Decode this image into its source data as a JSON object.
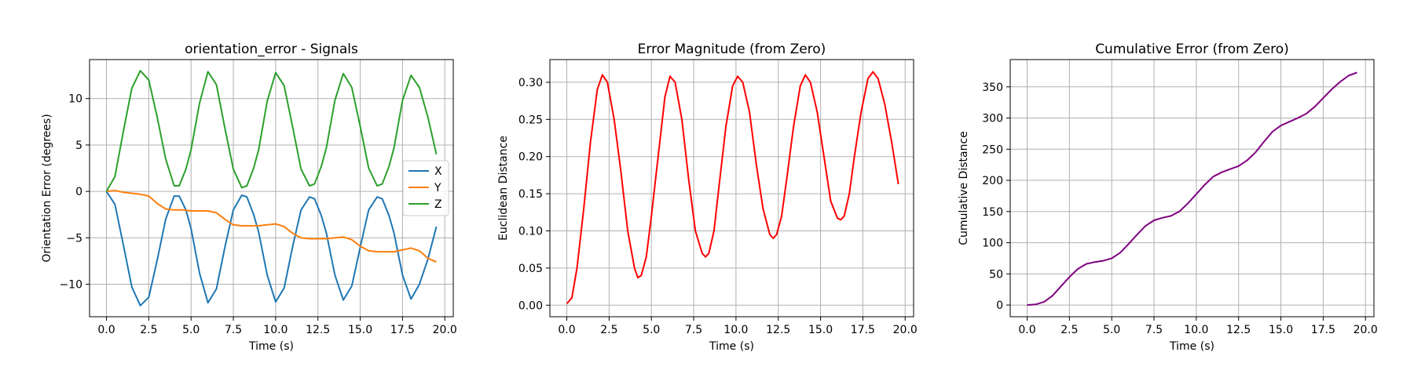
{
  "chart_data": [
    {
      "type": "line",
      "title": "orientation_error - Signals",
      "xlabel": "Time (s)",
      "ylabel": "Orientation Error (degrees)",
      "xlim": [
        -1.0,
        20.5
      ],
      "ylim": [
        -13.5,
        14.2
      ],
      "xticks": [
        0.0,
        2.5,
        5.0,
        7.5,
        10.0,
        12.5,
        15.0,
        17.5,
        20.0
      ],
      "xtick_labels": [
        "0.0",
        "2.5",
        "5.0",
        "7.5",
        "10.0",
        "12.5",
        "15.0",
        "17.5",
        "20.0"
      ],
      "yticks": [
        -10,
        -5,
        0,
        5,
        10
      ],
      "ytick_labels": [
        "−10",
        "−5",
        "0",
        "5",
        "10"
      ],
      "grid": true,
      "legend": "center-right",
      "series": [
        {
          "name": "X",
          "color": "#1f77b4",
          "x": [
            0.0,
            0.5,
            1.0,
            1.5,
            2.0,
            2.5,
            3.0,
            3.5,
            4.0,
            4.3,
            4.7,
            5.0,
            5.5,
            6.0,
            6.5,
            7.0,
            7.5,
            8.0,
            8.3,
            8.7,
            9.0,
            9.5,
            10.0,
            10.5,
            11.0,
            11.5,
            12.0,
            12.3,
            12.7,
            13.0,
            13.5,
            14.0,
            14.5,
            15.0,
            15.5,
            16.0,
            16.3,
            16.7,
            17.0,
            17.5,
            18.0,
            18.5,
            19.0,
            19.5
          ],
          "y": [
            0.0,
            -1.4,
            -5.8,
            -10.3,
            -12.3,
            -11.4,
            -7.4,
            -3.0,
            -0.5,
            -0.5,
            -2.0,
            -4.0,
            -8.8,
            -12.0,
            -10.5,
            -6.0,
            -2.0,
            -0.4,
            -0.6,
            -2.5,
            -4.4,
            -9.0,
            -11.9,
            -10.4,
            -6.0,
            -2.0,
            -0.6,
            -0.8,
            -2.6,
            -4.5,
            -9.0,
            -11.7,
            -10.2,
            -6.0,
            -2.0,
            -0.6,
            -0.8,
            -2.6,
            -4.5,
            -9.0,
            -11.6,
            -10.0,
            -7.3,
            -3.8
          ]
        },
        {
          "name": "Y",
          "color": "#ff7f0e",
          "x": [
            0.0,
            0.5,
            1.0,
            1.5,
            2.0,
            2.5,
            3.0,
            3.5,
            4.0,
            4.5,
            5.0,
            5.5,
            6.0,
            6.5,
            7.0,
            7.5,
            8.0,
            8.5,
            9.0,
            9.5,
            10.0,
            10.5,
            11.0,
            11.5,
            12.0,
            12.5,
            13.0,
            13.5,
            14.0,
            14.5,
            15.0,
            15.5,
            16.0,
            16.5,
            17.0,
            17.5,
            18.0,
            18.5,
            19.0,
            19.5
          ],
          "y": [
            0.0,
            0.1,
            -0.1,
            -0.2,
            -0.3,
            -0.5,
            -1.3,
            -1.9,
            -2.0,
            -2.0,
            -2.1,
            -2.1,
            -2.1,
            -2.3,
            -3.0,
            -3.6,
            -3.7,
            -3.7,
            -3.7,
            -3.6,
            -3.5,
            -3.8,
            -4.5,
            -5.0,
            -5.1,
            -5.1,
            -5.1,
            -5.0,
            -4.9,
            -5.2,
            -5.9,
            -6.4,
            -6.5,
            -6.5,
            -6.5,
            -6.3,
            -6.1,
            -6.4,
            -7.2,
            -7.6
          ]
        },
        {
          "name": "Z",
          "color": "#2ca02c",
          "x": [
            0.0,
            0.5,
            1.0,
            1.5,
            2.0,
            2.5,
            3.0,
            3.5,
            4.0,
            4.3,
            4.7,
            5.0,
            5.5,
            6.0,
            6.5,
            7.0,
            7.5,
            8.0,
            8.3,
            8.7,
            9.0,
            9.5,
            10.0,
            10.5,
            11.0,
            11.5,
            12.0,
            12.3,
            12.7,
            13.0,
            13.5,
            14.0,
            14.5,
            15.0,
            15.5,
            16.0,
            16.3,
            16.7,
            17.0,
            17.5,
            18.0,
            18.5,
            19.0,
            19.5
          ],
          "y": [
            0.0,
            1.6,
            6.5,
            11.1,
            13.0,
            12.0,
            8.0,
            3.5,
            0.6,
            0.6,
            2.4,
            4.5,
            9.5,
            12.9,
            11.5,
            6.8,
            2.4,
            0.4,
            0.6,
            2.5,
            4.5,
            9.7,
            12.8,
            11.4,
            7.0,
            2.4,
            0.6,
            0.8,
            2.7,
            4.7,
            9.8,
            12.7,
            11.2,
            7.0,
            2.5,
            0.6,
            0.8,
            2.7,
            4.7,
            9.8,
            12.5,
            11.2,
            8.0,
            4.0
          ]
        }
      ]
    },
    {
      "type": "line",
      "title": "Error Magnitude (from Zero)",
      "xlabel": "Time (s)",
      "ylabel": "Euclidean Distance",
      "xlim": [
        -1.0,
        20.5
      ],
      "ylim": [
        -0.0155,
        0.3305
      ],
      "xticks": [
        0.0,
        2.5,
        5.0,
        7.5,
        10.0,
        12.5,
        15.0,
        17.5,
        20.0
      ],
      "xtick_labels": [
        "0.0",
        "2.5",
        "5.0",
        "7.5",
        "10.0",
        "12.5",
        "15.0",
        "17.5",
        "20.0"
      ],
      "yticks": [
        0.0,
        0.05,
        0.1,
        0.15,
        0.2,
        0.25,
        0.3
      ],
      "ytick_labels": [
        "0.00",
        "0.05",
        "0.10",
        "0.15",
        "0.20",
        "0.25",
        "0.30"
      ],
      "grid": true,
      "series": [
        {
          "color": "#ff0000",
          "x": [
            0.0,
            0.3,
            0.6,
            1.0,
            1.4,
            1.8,
            2.1,
            2.4,
            2.8,
            3.2,
            3.6,
            4.0,
            4.2,
            4.4,
            4.7,
            5.0,
            5.4,
            5.8,
            6.1,
            6.4,
            6.8,
            7.2,
            7.6,
            8.0,
            8.2,
            8.4,
            8.7,
            9.0,
            9.4,
            9.8,
            10.1,
            10.4,
            10.8,
            11.2,
            11.6,
            12.0,
            12.2,
            12.4,
            12.7,
            13.0,
            13.4,
            13.8,
            14.1,
            14.4,
            14.8,
            15.2,
            15.6,
            16.0,
            16.2,
            16.4,
            16.7,
            17.0,
            17.4,
            17.8,
            18.1,
            18.4,
            18.8,
            19.2,
            19.6
          ],
          "y": [
            0.002,
            0.01,
            0.05,
            0.13,
            0.22,
            0.29,
            0.31,
            0.3,
            0.25,
            0.18,
            0.1,
            0.05,
            0.037,
            0.04,
            0.065,
            0.12,
            0.2,
            0.28,
            0.308,
            0.3,
            0.25,
            0.17,
            0.1,
            0.07,
            0.065,
            0.07,
            0.1,
            0.16,
            0.24,
            0.295,
            0.308,
            0.3,
            0.26,
            0.19,
            0.13,
            0.095,
            0.09,
            0.095,
            0.12,
            0.17,
            0.24,
            0.295,
            0.31,
            0.3,
            0.26,
            0.2,
            0.14,
            0.117,
            0.115,
            0.12,
            0.15,
            0.2,
            0.26,
            0.305,
            0.314,
            0.305,
            0.27,
            0.22,
            0.163
          ]
        }
      ]
    },
    {
      "type": "line",
      "title": "Cumulative Error (from Zero)",
      "xlabel": "Time (s)",
      "ylabel": "Cumulative Distance",
      "xlim": [
        -1.0,
        20.5
      ],
      "ylim": [
        -18.75,
        393.75
      ],
      "xticks": [
        0.0,
        2.5,
        5.0,
        7.5,
        10.0,
        12.5,
        15.0,
        17.5,
        20.0
      ],
      "xtick_labels": [
        "0.0",
        "2.5",
        "5.0",
        "7.5",
        "10.0",
        "12.5",
        "15.0",
        "17.5",
        "20.0"
      ],
      "yticks": [
        0,
        50,
        100,
        150,
        200,
        250,
        300,
        350
      ],
      "ytick_labels": [
        "0",
        "50",
        "100",
        "150",
        "200",
        "250",
        "300",
        "350"
      ],
      "grid": true,
      "series": [
        {
          "color": "#800080",
          "x": [
            0.0,
            0.5,
            1.0,
            1.5,
            2.0,
            2.5,
            3.0,
            3.5,
            4.0,
            4.5,
            5.0,
            5.5,
            6.0,
            6.5,
            7.0,
            7.5,
            8.0,
            8.5,
            9.0,
            9.5,
            10.0,
            10.5,
            11.0,
            11.5,
            12.0,
            12.5,
            13.0,
            13.5,
            14.0,
            14.5,
            15.0,
            15.5,
            16.0,
            16.5,
            17.0,
            17.5,
            18.0,
            18.5,
            19.0,
            19.5
          ],
          "y": [
            0,
            1,
            5,
            15,
            30,
            45,
            58,
            66,
            69,
            71,
            75,
            84,
            98,
            113,
            127,
            136,
            140,
            143,
            150,
            163,
            178,
            193,
            206,
            213,
            218,
            223,
            232,
            245,
            262,
            278,
            288,
            294,
            300,
            307,
            318,
            332,
            346,
            358,
            368,
            373
          ]
        }
      ]
    }
  ]
}
